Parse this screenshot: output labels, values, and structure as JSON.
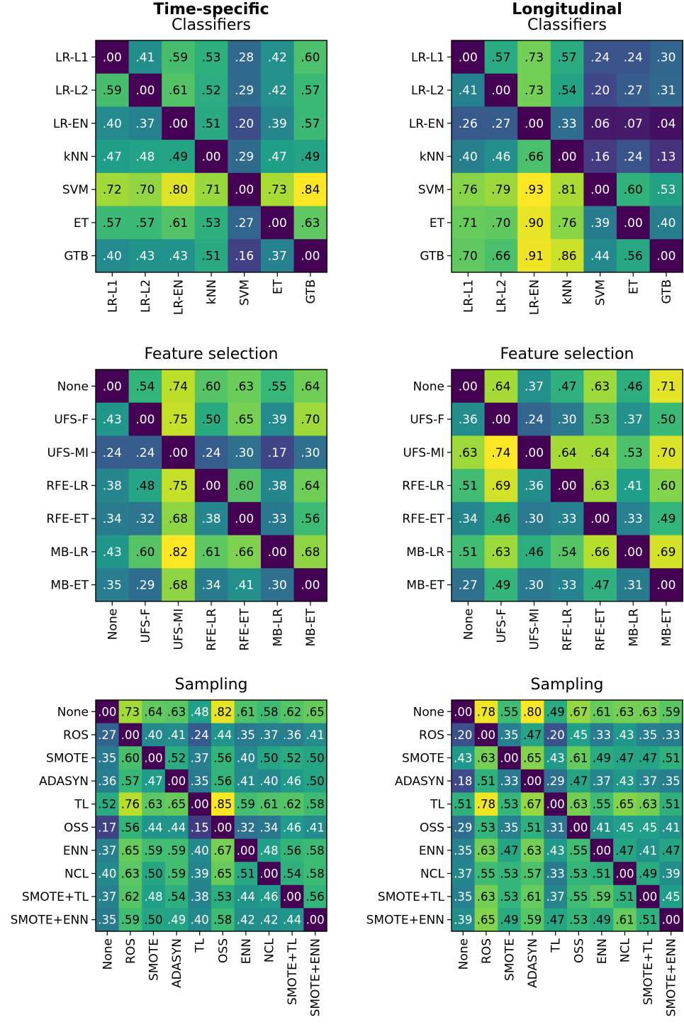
{
  "colormap": [
    "#440154",
    "#482878",
    "#3e4989",
    "#31688e",
    "#26828e",
    "#1f9e89",
    "#35b779",
    "#6ece58",
    "#b5de2b",
    "#fde725"
  ],
  "text_dark": "#000000",
  "text_light": "#ffffff",
  "chart_data": [
    {
      "type": "heatmap",
      "title": "Time-specific",
      "subtitle": "Classifiers",
      "rows": [
        "LR-L1",
        "LR-L2",
        "LR-EN",
        "kNN",
        "SVM",
        "ET",
        "GTB"
      ],
      "cols": [
        "LR-L1",
        "LR-L2",
        "LR-EN",
        "kNN",
        "SVM",
        "ET",
        "GTB"
      ],
      "values": [
        [
          0.0,
          0.41,
          0.59,
          0.53,
          0.28,
          0.42,
          0.6
        ],
        [
          0.59,
          0.0,
          0.61,
          0.52,
          0.29,
          0.42,
          0.57
        ],
        [
          0.4,
          0.37,
          0.0,
          0.51,
          0.2,
          0.39,
          0.57
        ],
        [
          0.47,
          0.48,
          0.49,
          0.0,
          0.29,
          0.47,
          0.49
        ],
        [
          0.72,
          0.7,
          0.8,
          0.71,
          0.0,
          0.73,
          0.84
        ],
        [
          0.57,
          0.57,
          0.61,
          0.53,
          0.27,
          0.0,
          0.63
        ],
        [
          0.4,
          0.43,
          0.43,
          0.51,
          0.16,
          0.37,
          0.0
        ]
      ]
    },
    {
      "type": "heatmap",
      "title": "Longitudinal",
      "subtitle": "Classifiers",
      "rows": [
        "LR-L1",
        "LR-L2",
        "LR-EN",
        "kNN",
        "SVM",
        "ET",
        "GTB"
      ],
      "cols": [
        "LR-L1",
        "LR-L2",
        "LR-EN",
        "kNN",
        "SVM",
        "ET",
        "GTB"
      ],
      "values": [
        [
          0.0,
          0.57,
          0.73,
          0.57,
          0.24,
          0.24,
          0.3
        ],
        [
          0.41,
          0.0,
          0.73,
          0.54,
          0.2,
          0.27,
          0.31
        ],
        [
          0.26,
          0.27,
          0.0,
          0.33,
          0.06,
          0.07,
          0.04
        ],
        [
          0.4,
          0.46,
          0.66,
          0.0,
          0.16,
          0.24,
          0.13
        ],
        [
          0.76,
          0.79,
          0.93,
          0.81,
          0.0,
          0.6,
          0.53
        ],
        [
          0.71,
          0.7,
          0.9,
          0.76,
          0.39,
          0.0,
          0.4
        ],
        [
          0.7,
          0.66,
          0.91,
          0.86,
          0.44,
          0.56,
          0.0
        ]
      ]
    },
    {
      "type": "heatmap",
      "title": "",
      "subtitle": "Feature selection",
      "rows": [
        "None",
        "UFS-F",
        "UFS-MI",
        "RFE-LR",
        "RFE-ET",
        "MB-LR",
        "MB-ET"
      ],
      "cols": [
        "None",
        "UFS-F",
        "UFS-MI",
        "RFE-LR",
        "RFE-ET",
        "MB-LR",
        "MB-ET"
      ],
      "values": [
        [
          0.0,
          0.54,
          0.74,
          0.6,
          0.63,
          0.55,
          0.64
        ],
        [
          0.43,
          0.0,
          0.75,
          0.5,
          0.65,
          0.39,
          0.7
        ],
        [
          0.24,
          0.24,
          0.0,
          0.24,
          0.3,
          0.17,
          0.3
        ],
        [
          0.38,
          0.48,
          0.75,
          0.0,
          0.6,
          0.38,
          0.64
        ],
        [
          0.34,
          0.32,
          0.68,
          0.38,
          0.0,
          0.33,
          0.56
        ],
        [
          0.43,
          0.6,
          0.82,
          0.61,
          0.66,
          0.0,
          0.68
        ],
        [
          0.35,
          0.29,
          0.68,
          0.34,
          0.41,
          0.3,
          0.0
        ]
      ]
    },
    {
      "type": "heatmap",
      "title": "",
      "subtitle": "Feature selection",
      "rows": [
        "None",
        "UFS-F",
        "UFS-MI",
        "RFE-LR",
        "RFE-ET",
        "MB-LR",
        "MB-ET"
      ],
      "cols": [
        "None",
        "UFS-F",
        "UFS-MI",
        "RFE-LR",
        "RFE-ET",
        "MB-LR",
        "MB-ET"
      ],
      "values": [
        [
          0.0,
          0.64,
          0.37,
          0.47,
          0.63,
          0.46,
          0.71
        ],
        [
          0.36,
          0.0,
          0.24,
          0.3,
          0.53,
          0.37,
          0.5
        ],
        [
          0.63,
          0.74,
          0.0,
          0.64,
          0.64,
          0.53,
          0.7
        ],
        [
          0.51,
          0.69,
          0.36,
          0.0,
          0.63,
          0.41,
          0.6
        ],
        [
          0.34,
          0.46,
          0.3,
          0.33,
          0.0,
          0.33,
          0.49
        ],
        [
          0.51,
          0.63,
          0.46,
          0.54,
          0.66,
          0.0,
          0.69
        ],
        [
          0.27,
          0.49,
          0.3,
          0.33,
          0.47,
          0.31,
          0.0
        ]
      ]
    },
    {
      "type": "heatmap",
      "title": "",
      "subtitle": "Sampling",
      "rows": [
        "None",
        "ROS",
        "SMOTE",
        "ADASYN",
        "TL",
        "OSS",
        "ENN",
        "NCL",
        "SMOTE+TL",
        "SMOTE+ENN"
      ],
      "cols": [
        "None",
        "ROS",
        "SMOTE",
        "ADASYN",
        "TL",
        "OSS",
        "ENN",
        "NCL",
        "SMOTE+TL",
        "SMOTE+ENN"
      ],
      "values": [
        [
          0.0,
          0.73,
          0.64,
          0.63,
          0.48,
          0.82,
          0.61,
          0.58,
          0.62,
          0.65
        ],
        [
          0.27,
          0.0,
          0.4,
          0.41,
          0.24,
          0.44,
          0.35,
          0.37,
          0.36,
          0.41
        ],
        [
          0.35,
          0.6,
          0.0,
          0.52,
          0.37,
          0.56,
          0.4,
          0.5,
          0.52,
          0.5
        ],
        [
          0.36,
          0.57,
          0.47,
          0.0,
          0.35,
          0.56,
          0.41,
          0.4,
          0.46,
          0.5
        ],
        [
          0.52,
          0.76,
          0.63,
          0.65,
          0.0,
          0.85,
          0.59,
          0.61,
          0.62,
          0.58
        ],
        [
          0.17,
          0.56,
          0.44,
          0.44,
          0.15,
          0.0,
          0.32,
          0.34,
          0.46,
          0.41
        ],
        [
          0.37,
          0.65,
          0.59,
          0.59,
          0.4,
          0.67,
          0.0,
          0.48,
          0.56,
          0.58
        ],
        [
          0.4,
          0.63,
          0.5,
          0.59,
          0.39,
          0.65,
          0.51,
          0.0,
          0.54,
          0.58
        ],
        [
          0.37,
          0.62,
          0.48,
          0.54,
          0.38,
          0.53,
          0.44,
          0.46,
          0.0,
          0.56
        ],
        [
          0.35,
          0.59,
          0.5,
          0.49,
          0.4,
          0.58,
          0.42,
          0.42,
          0.44,
          0.0
        ]
      ]
    },
    {
      "type": "heatmap",
      "title": "",
      "subtitle": "Sampling",
      "rows": [
        "None",
        "ROS",
        "SMOTE",
        "ADASYN",
        "TL",
        "OSS",
        "ENN",
        "NCL",
        "SMOTE+TL",
        "SMOTE+ENN"
      ],
      "cols": [
        "None",
        "ROS",
        "SMOTE",
        "ADASYN",
        "TL",
        "OSS",
        "ENN",
        "NCL",
        "SMOTE+TL",
        "SMOTE+ENN"
      ],
      "values": [
        [
          0.0,
          0.78,
          0.55,
          0.8,
          0.49,
          0.67,
          0.61,
          0.63,
          0.63,
          0.59
        ],
        [
          0.2,
          0.0,
          0.35,
          0.47,
          0.2,
          0.45,
          0.33,
          0.43,
          0.35,
          0.33
        ],
        [
          0.43,
          0.63,
          0.0,
          0.65,
          0.43,
          0.61,
          0.49,
          0.47,
          0.47,
          0.51
        ],
        [
          0.18,
          0.51,
          0.33,
          0.0,
          0.29,
          0.47,
          0.37,
          0.43,
          0.37,
          0.35
        ],
        [
          0.51,
          0.78,
          0.53,
          0.67,
          0.0,
          0.63,
          0.55,
          0.65,
          0.63,
          0.51
        ],
        [
          0.29,
          0.53,
          0.35,
          0.51,
          0.31,
          0.0,
          0.41,
          0.45,
          0.45,
          0.41
        ],
        [
          0.35,
          0.63,
          0.47,
          0.63,
          0.43,
          0.55,
          0.0,
          0.47,
          0.41,
          0.47
        ],
        [
          0.37,
          0.55,
          0.53,
          0.57,
          0.33,
          0.53,
          0.51,
          0.0,
          0.49,
          0.39
        ],
        [
          0.35,
          0.63,
          0.53,
          0.61,
          0.37,
          0.55,
          0.59,
          0.51,
          0.0,
          0.45
        ],
        [
          0.39,
          0.65,
          0.49,
          0.59,
          0.47,
          0.53,
          0.49,
          0.61,
          0.51,
          0.0
        ]
      ]
    }
  ]
}
